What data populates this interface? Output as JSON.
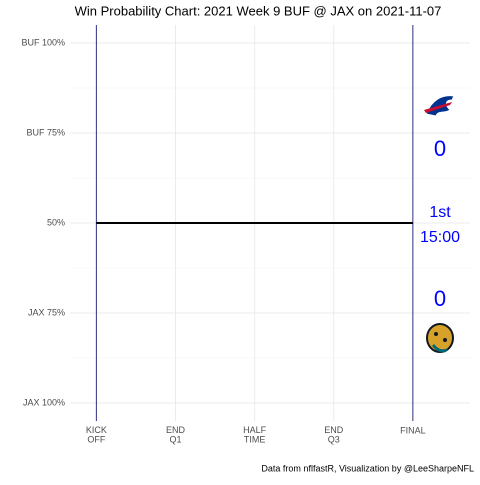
{
  "chart_data": {
    "type": "line",
    "title": "Win Probability Chart: 2021 Week 9 BUF @ JAX on 2021-11-07",
    "caption": "Data from nflfastR, Visualization by @LeeSharpeNFL",
    "x": [
      0,
      3600
    ],
    "values": [
      50,
      50
    ],
    "color": "#000000",
    "xlim": [
      -300,
      4250
    ],
    "xticks": [
      {
        "value": 0,
        "label": "KICK\nOFF"
      },
      {
        "value": 900,
        "label": "END\nQ1"
      },
      {
        "value": 1800,
        "label": "HALF\nTIME"
      },
      {
        "value": 2700,
        "label": "END\nQ3"
      },
      {
        "value": 3600,
        "label": "FINAL"
      }
    ],
    "ylim": [
      -5,
      105
    ],
    "yticks": [
      {
        "value": 100,
        "label": "BUF 100%"
      },
      {
        "value": 75,
        "label": "BUF 75%"
      },
      {
        "value": 50,
        "label": "50%"
      },
      {
        "value": 25,
        "label": "JAX 75%"
      },
      {
        "value": 0,
        "label": "JAX 100%"
      }
    ],
    "grid": true,
    "scoreboard": {
      "away_score": 0,
      "home_score": 0,
      "quarter": "1st",
      "clock": "15:00",
      "color": "#0000ff"
    }
  }
}
